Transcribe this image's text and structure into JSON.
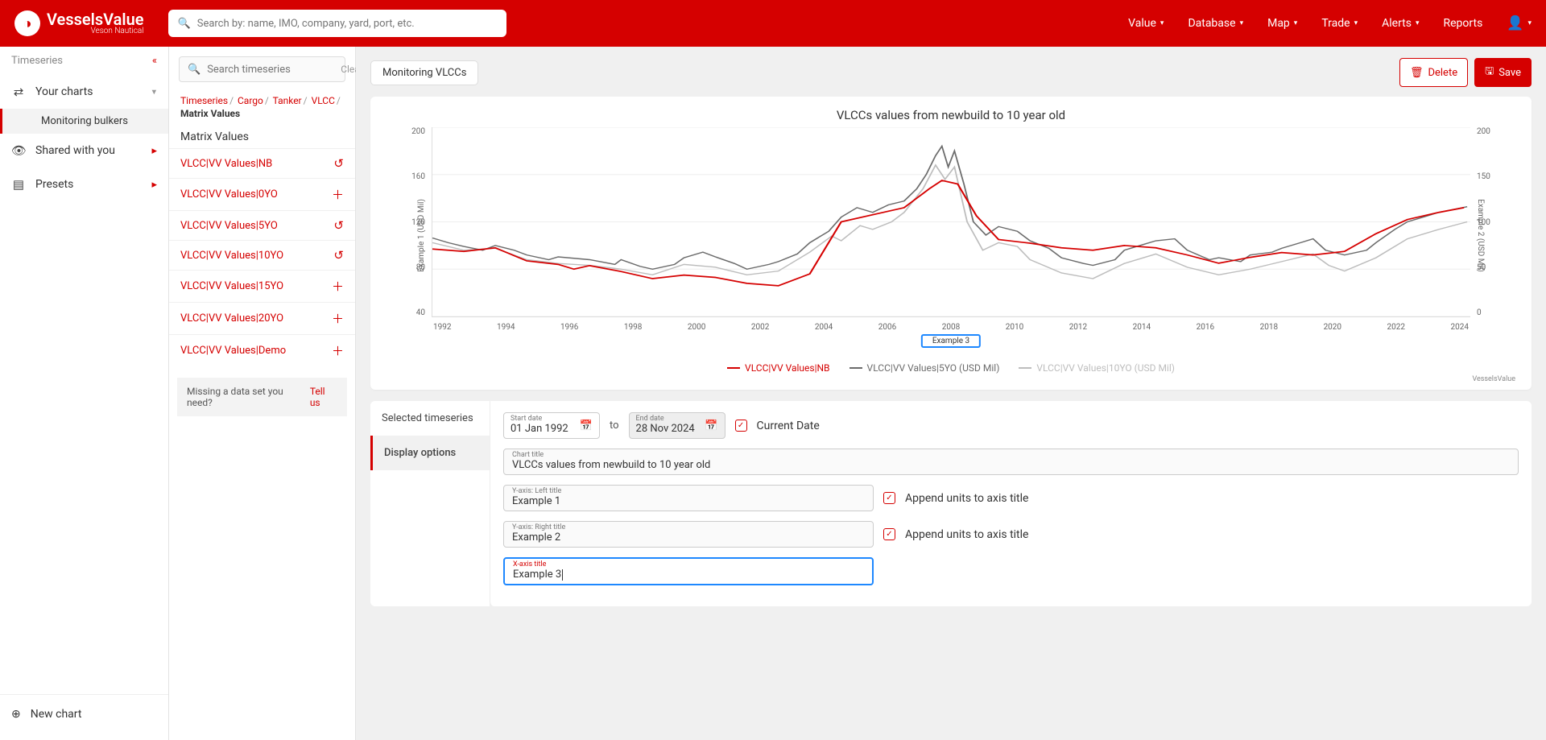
{
  "brand": {
    "name": "VesselsValue",
    "sub": "Veson Nautical"
  },
  "search_placeholder": "Search by: name, IMO, company, yard, port, etc.",
  "topnav": [
    "Value",
    "Database",
    "Map",
    "Trade",
    "Alerts",
    "Reports"
  ],
  "rail": {
    "header": "Timeseries",
    "your_charts": "Your charts",
    "sub_item": "Monitoring bulkers",
    "shared": "Shared with you",
    "presets": "Presets",
    "new_chart": "New chart"
  },
  "series_panel": {
    "search_placeholder": "Search timeseries",
    "clear": "Clear",
    "crumbs": [
      "Timeseries",
      "Cargo",
      "Tanker",
      "VLCC"
    ],
    "crumbs_last": "Matrix Values",
    "title": "Matrix Values",
    "items": [
      {
        "label": "VLCC|VV Values|NB",
        "action": "undo"
      },
      {
        "label": "VLCC|VV Values|0YO",
        "action": "add"
      },
      {
        "label": "VLCC|VV Values|5YO",
        "action": "undo"
      },
      {
        "label": "VLCC|VV Values|10YO",
        "action": "undo"
      },
      {
        "label": "VLCC|VV Values|15YO",
        "action": "add"
      },
      {
        "label": "VLCC|VV Values|20YO",
        "action": "add"
      },
      {
        "label": "VLCC|VV Values|Demo",
        "action": "add"
      }
    ],
    "missing": "Missing a data set you need?",
    "tell_us": "Tell us"
  },
  "content": {
    "tab": "Monitoring VLCCs",
    "delete": "Delete",
    "save": "Save"
  },
  "chart": {
    "title": "VLCCs values from newbuild to 10 year old",
    "y_left_label": "Example 1 (USD Mil)",
    "y_right_label": "Example 2 (USD Mil)",
    "y_left_ticks": [
      "200",
      "160",
      "120",
      "80",
      "40"
    ],
    "y_right_ticks": [
      "200",
      "150",
      "100",
      "50",
      "0"
    ],
    "x_ticks": [
      "1992",
      "1994",
      "1996",
      "1998",
      "2000",
      "2002",
      "2004",
      "2006",
      "2008",
      "2010",
      "2012",
      "2014",
      "2016",
      "2018",
      "2020",
      "2022",
      "2024"
    ],
    "x_axis_box": "Example 3",
    "legend": [
      {
        "label": "VLCC|VV Values|NB",
        "color": "#d50000"
      },
      {
        "label": "VLCC|VV Values|5YO (USD Mil)",
        "color": "#6b6b6b"
      },
      {
        "label": "VLCC|VV Values|10YO (USD Mil)",
        "color": "#bdbdbd"
      }
    ],
    "credit": "VesselsValue",
    "series_colors": {
      "nb": "#d50000",
      "fiveyo": "#6b6b6b",
      "tenyo": "#bdbdbd"
    },
    "background_color": "#ffffff",
    "grid_color": "#eeeeee",
    "line_width": 1.4,
    "ylim_left": [
      40,
      200
    ],
    "ylim_right": [
      0,
      200
    ],
    "xlim": [
      1992,
      2025
    ],
    "series": {
      "nb": [
        [
          1992,
          97
        ],
        [
          1993,
          95
        ],
        [
          1994,
          98
        ],
        [
          1995,
          87
        ],
        [
          1996,
          84
        ],
        [
          1996.5,
          80
        ],
        [
          1997,
          83
        ],
        [
          1998,
          78
        ],
        [
          1999,
          72
        ],
        [
          2000,
          75
        ],
        [
          2001,
          73
        ],
        [
          2002,
          68
        ],
        [
          2003,
          66
        ],
        [
          2004,
          76
        ],
        [
          2005,
          120
        ],
        [
          2006,
          126
        ],
        [
          2007,
          132
        ],
        [
          2007.8,
          148
        ],
        [
          2008.2,
          155
        ],
        [
          2008.7,
          152
        ],
        [
          2009.3,
          125
        ],
        [
          2010,
          105
        ],
        [
          2011,
          102
        ],
        [
          2012,
          98
        ],
        [
          2013,
          96
        ],
        [
          2014,
          100
        ],
        [
          2015,
          98
        ],
        [
          2016,
          92
        ],
        [
          2017,
          85
        ],
        [
          2018,
          90
        ],
        [
          2019,
          94
        ],
        [
          2020,
          92
        ],
        [
          2021,
          95
        ],
        [
          2022,
          110
        ],
        [
          2023,
          122
        ],
        [
          2024,
          128
        ],
        [
          2024.8,
          132
        ]
      ],
      "fiveyo": [
        [
          1992,
          83
        ],
        [
          1992.5,
          78
        ],
        [
          1993,
          74
        ],
        [
          1993.6,
          70
        ],
        [
          1994,
          75
        ],
        [
          1994.6,
          70
        ],
        [
          1995,
          65
        ],
        [
          1995.7,
          60
        ],
        [
          1996,
          63
        ],
        [
          1997,
          60
        ],
        [
          1997.8,
          55
        ],
        [
          1998,
          60
        ],
        [
          1998.6,
          53
        ],
        [
          1999,
          50
        ],
        [
          1999.7,
          55
        ],
        [
          2000,
          62
        ],
        [
          2000.6,
          68
        ],
        [
          2001,
          63
        ],
        [
          2001.6,
          56
        ],
        [
          2002,
          50
        ],
        [
          2002.7,
          55
        ],
        [
          2003,
          58
        ],
        [
          2003.6,
          66
        ],
        [
          2004,
          78
        ],
        [
          2004.6,
          90
        ],
        [
          2005,
          105
        ],
        [
          2005.5,
          115
        ],
        [
          2006,
          110
        ],
        [
          2006.5,
          118
        ],
        [
          2007,
          122
        ],
        [
          2007.4,
          135
        ],
        [
          2007.7,
          150
        ],
        [
          2008,
          170
        ],
        [
          2008.2,
          180
        ],
        [
          2008.4,
          158
        ],
        [
          2008.6,
          175
        ],
        [
          2008.9,
          140
        ],
        [
          2009.2,
          100
        ],
        [
          2009.6,
          86
        ],
        [
          2010,
          95
        ],
        [
          2010.6,
          90
        ],
        [
          2011,
          80
        ],
        [
          2011.6,
          72
        ],
        [
          2012,
          62
        ],
        [
          2012.7,
          56
        ],
        [
          2013,
          54
        ],
        [
          2013.7,
          60
        ],
        [
          2014,
          70
        ],
        [
          2014.6,
          76
        ],
        [
          2015,
          80
        ],
        [
          2015.6,
          82
        ],
        [
          2016,
          70
        ],
        [
          2016.7,
          60
        ],
        [
          2017,
          62
        ],
        [
          2017.7,
          58
        ],
        [
          2018,
          65
        ],
        [
          2018.7,
          68
        ],
        [
          2019,
          72
        ],
        [
          2019.6,
          78
        ],
        [
          2020,
          82
        ],
        [
          2020.4,
          70
        ],
        [
          2021,
          65
        ],
        [
          2021.7,
          70
        ],
        [
          2022,
          78
        ],
        [
          2022.6,
          92
        ],
        [
          2023,
          100
        ],
        [
          2023.6,
          106
        ],
        [
          2024,
          110
        ],
        [
          2024.6,
          114
        ],
        [
          2024.9,
          116
        ]
      ],
      "tenyo": [
        [
          1992,
          78
        ],
        [
          1993,
          70
        ],
        [
          1994,
          72
        ],
        [
          1995,
          60
        ],
        [
          1996,
          56
        ],
        [
          1997,
          54
        ],
        [
          1998,
          50
        ],
        [
          1999,
          44
        ],
        [
          2000,
          55
        ],
        [
          2001,
          52
        ],
        [
          2002,
          44
        ],
        [
          2003,
          48
        ],
        [
          2004,
          68
        ],
        [
          2004.7,
          85
        ],
        [
          2005,
          80
        ],
        [
          2005.6,
          96
        ],
        [
          2006,
          92
        ],
        [
          2006.6,
          100
        ],
        [
          2007,
          110
        ],
        [
          2007.6,
          135
        ],
        [
          2008,
          160
        ],
        [
          2008.3,
          145
        ],
        [
          2008.6,
          158
        ],
        [
          2009,
          100
        ],
        [
          2009.5,
          70
        ],
        [
          2010,
          78
        ],
        [
          2010.6,
          74
        ],
        [
          2011,
          60
        ],
        [
          2012,
          46
        ],
        [
          2013,
          40
        ],
        [
          2014,
          56
        ],
        [
          2015,
          66
        ],
        [
          2016,
          52
        ],
        [
          2017,
          44
        ],
        [
          2018,
          50
        ],
        [
          2019,
          58
        ],
        [
          2020,
          66
        ],
        [
          2020.5,
          54
        ],
        [
          2021,
          48
        ],
        [
          2022,
          62
        ],
        [
          2023,
          82
        ],
        [
          2024,
          92
        ],
        [
          2024.9,
          100
        ]
      ]
    }
  },
  "lower": {
    "tab_selected": "Selected timeseries",
    "tab_display": "Display options",
    "start_label": "Start date",
    "start_value": "01 Jan 1992",
    "to": "to",
    "end_label": "End date",
    "end_value": "28 Nov 2024",
    "current_date": "Current Date",
    "chart_title_label": "Chart title",
    "chart_title_value": "VLCCs values from newbuild to 10 year old",
    "yleft_label": "Y-axis: Left title",
    "yleft_value": "Example 1",
    "yright_label": "Y-axis: Right title",
    "yright_value": "Example 2",
    "xaxis_label": "X-axis title",
    "xaxis_value": "Example 3",
    "append_units": "Append units to axis title"
  }
}
